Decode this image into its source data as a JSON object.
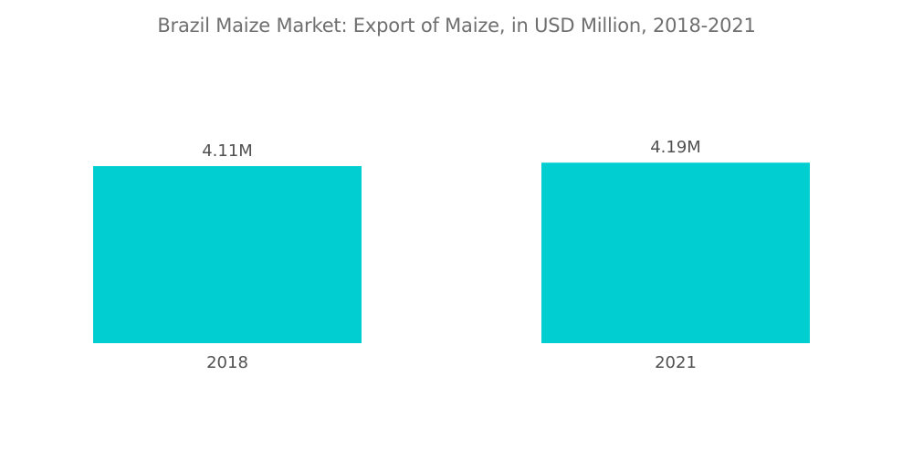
{
  "title": "Brazil Maize Market: Export of Maize, in USD Million, 2018-2021",
  "colors": {
    "bar": "#00ced1",
    "text": "#505050",
    "title": "#6f6f6f",
    "background": "#ffffff"
  },
  "chart_data": {
    "type": "bar",
    "title": "Brazil Maize Market: Export of Maize, in USD Million, 2018-2021",
    "categories": [
      "2018",
      "2021"
    ],
    "values": [
      4.11,
      4.19
    ],
    "data_labels": [
      "4.11M",
      "4.19M"
    ],
    "xlabel": "",
    "ylabel": "",
    "grid": false,
    "legend": "none"
  }
}
